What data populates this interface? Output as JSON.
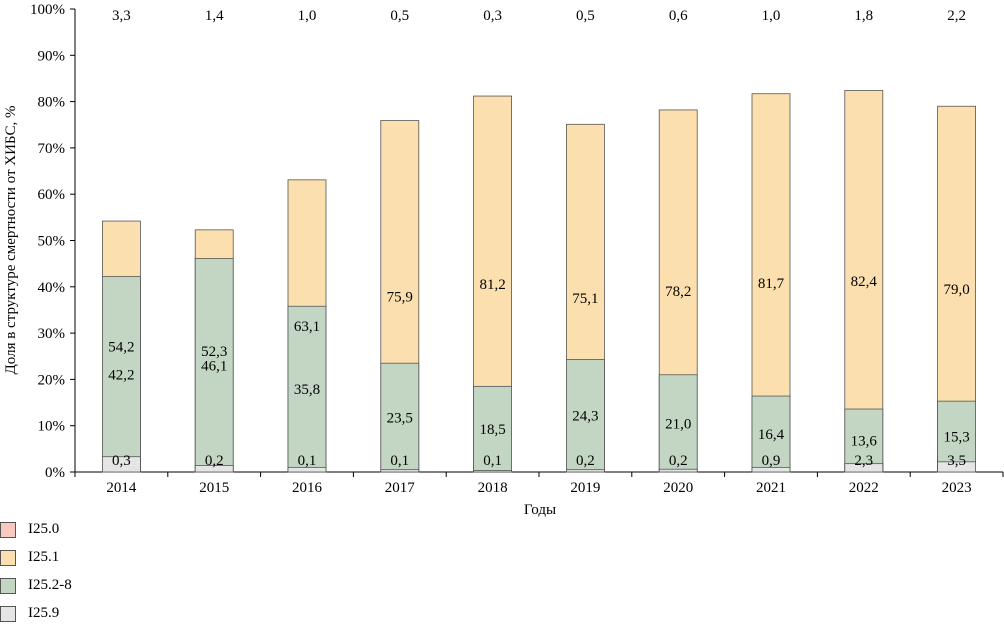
{
  "chart_data": {
    "type": "bar",
    "stacked": true,
    "percent": true,
    "title": "",
    "xlabel": "Годы",
    "ylabel": "Доля в структуре смертности от ХИБС, %",
    "ylim": [
      0,
      100
    ],
    "yticks": [
      "0%",
      "10%",
      "20%",
      "30%",
      "40%",
      "50%",
      "60%",
      "70%",
      "80%",
      "90%",
      "100%"
    ],
    "categories": [
      "2014",
      "2015",
      "2016",
      "2017",
      "2018",
      "2019",
      "2020",
      "2021",
      "2022",
      "2023"
    ],
    "series": [
      {
        "name": "I25.0",
        "color": "#f7c9c0",
        "values": [
          0.3,
          0.2,
          0.1,
          0.1,
          0.1,
          0.2,
          0.2,
          0.9,
          2.3,
          3.5
        ],
        "labels": [
          "0,3",
          "0,2",
          "0,1",
          "0,1",
          "0,1",
          "0,2",
          "0,2",
          "0,9",
          "2,3",
          "3,5"
        ]
      },
      {
        "name": "I25.1",
        "color": "#fbdfae",
        "values": [
          54.2,
          52.3,
          63.1,
          75.9,
          81.2,
          75.1,
          78.2,
          81.7,
          82.4,
          79.0
        ],
        "labels": [
          "54,2",
          "52,3",
          "63,1",
          "75,9",
          "81,2",
          "75,1",
          "78,2",
          "81,7",
          "82,4",
          "79,0"
        ]
      },
      {
        "name": "I25.2-8",
        "color": "#c3d6c4",
        "values": [
          42.2,
          46.1,
          35.8,
          23.5,
          18.5,
          24.3,
          21.0,
          16.4,
          13.6,
          15.3
        ],
        "labels": [
          "42,2",
          "46,1",
          "35,8",
          "23,5",
          "18,5",
          "24,3",
          "21,0",
          "16,4",
          "13,6",
          "15,3"
        ]
      },
      {
        "name": "I25.9",
        "color": "#e5e5e5",
        "values": [
          3.3,
          1.4,
          1.0,
          0.5,
          0.3,
          0.5,
          0.6,
          1.0,
          1.8,
          2.2
        ],
        "labels": [
          "3,3",
          "1,4",
          "1,0",
          "0,5",
          "0,3",
          "0,5",
          "0,6",
          "1,0",
          "1,8",
          "2,2"
        ]
      }
    ],
    "legend_position": "bottom-left",
    "grid": false
  }
}
